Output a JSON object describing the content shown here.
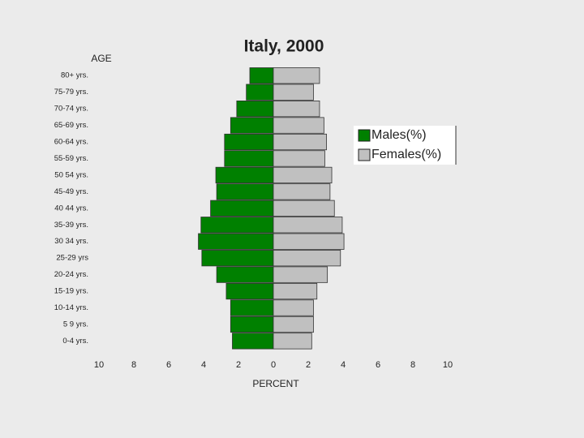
{
  "chart_data": {
    "type": "pyramid",
    "title": "Italy, 2000",
    "y_label": "AGE",
    "x_label": "PERCENT",
    "categories": [
      "80+ yrs.",
      "75-79 yrs.",
      "70-74 yrs.",
      "65-69 yrs.",
      "60-64 yrs.",
      "55-59 yrs.",
      "50 54 yrs.",
      "45-49 yrs.",
      "40 44 yrs.",
      "35-39 yrs.",
      "30 34 yrs.",
      "25-29 yrs",
      "20-24 yrs.",
      "15-19 yrs.",
      "10-14 yrs.",
      "5 9 yrs.",
      "0-4 yrs."
    ],
    "series": [
      {
        "name": "Males(%)",
        "color": "#008000",
        "side": "left",
        "values": [
          1.35,
          1.55,
          2.1,
          2.45,
          2.8,
          2.8,
          3.3,
          3.25,
          3.6,
          4.15,
          4.3,
          4.1,
          3.25,
          2.7,
          2.45,
          2.45,
          2.35
        ]
      },
      {
        "name": "Females(%)",
        "color": "#c0c0c0",
        "side": "right",
        "values": [
          2.65,
          2.3,
          2.65,
          2.9,
          3.05,
          2.95,
          3.35,
          3.25,
          3.5,
          3.95,
          4.05,
          3.85,
          3.1,
          2.5,
          2.3,
          2.3,
          2.2
        ]
      }
    ],
    "xlim": [
      -10,
      10
    ],
    "xticks": [
      {
        "value": -10,
        "label": "10"
      },
      {
        "value": -8,
        "label": "8"
      },
      {
        "value": -6,
        "label": "6"
      },
      {
        "value": -4,
        "label": "4"
      },
      {
        "value": -2,
        "label": "2"
      },
      0,
      2,
      4,
      6,
      8,
      10
    ],
    "legend": "right"
  }
}
